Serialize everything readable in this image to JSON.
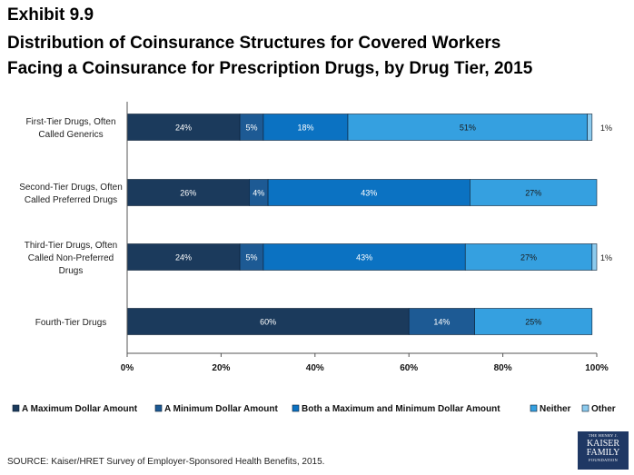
{
  "exhibit": "Exhibit 9.9",
  "title_line1": "Distribution of Coinsurance Structures for Covered Workers",
  "title_line2": "Facing a Coinsurance for Prescription Drugs, by Drug Tier,  2015",
  "source": "SOURCE: Kaiser/HRET Survey of Employer-Sponsored Health Benefits, 2015.",
  "logo": {
    "line1": "THE HENRY J.",
    "line2": "KAISER",
    "line3": "FAMILY",
    "line4": "FOUNDATION"
  },
  "chart_data": {
    "type": "bar",
    "orientation": "horizontal",
    "stacked": true,
    "xlim": [
      0,
      100
    ],
    "x_ticks": [
      "0%",
      "20%",
      "40%",
      "60%",
      "80%",
      "100%"
    ],
    "grid": false,
    "legend_position": "bottom",
    "categories": [
      [
        "First-Tier Drugs, Often",
        "Called Generics"
      ],
      [
        "Second-Tier Drugs, Often",
        "Called Preferred Drugs"
      ],
      [
        "Third-Tier Drugs, Often",
        "Called Non-Preferred",
        "Drugs"
      ],
      [
        "Fourth-Tier Drugs"
      ]
    ],
    "series": [
      {
        "name": "A Maximum Dollar Amount",
        "color": "#1b3a5c",
        "values": [
          24,
          26,
          24,
          60
        ],
        "labels": [
          "24%",
          "26%",
          "24%",
          "60%"
        ]
      },
      {
        "name": "A Minimum Dollar Amount",
        "color": "#1d5a94",
        "values": [
          5,
          4,
          5,
          14
        ],
        "labels": [
          "5%",
          "4%",
          "5%",
          "14%"
        ]
      },
      {
        "name": "Both a Maximum and Minimum Dollar Amount",
        "color": "#0b72c2",
        "values": [
          18,
          43,
          43,
          0
        ],
        "labels": [
          "18%",
          "43%",
          "43%",
          ""
        ]
      },
      {
        "name": "Neither",
        "color": "#35a0e0",
        "values": [
          51,
          27,
          27,
          25
        ],
        "labels": [
          "51%",
          "27%",
          "27%",
          "25%"
        ]
      },
      {
        "name": "Other",
        "color": "#8ccbee",
        "values": [
          1,
          0,
          1,
          0
        ],
        "labels": [
          "1%",
          "",
          "1%",
          ""
        ]
      }
    ]
  }
}
